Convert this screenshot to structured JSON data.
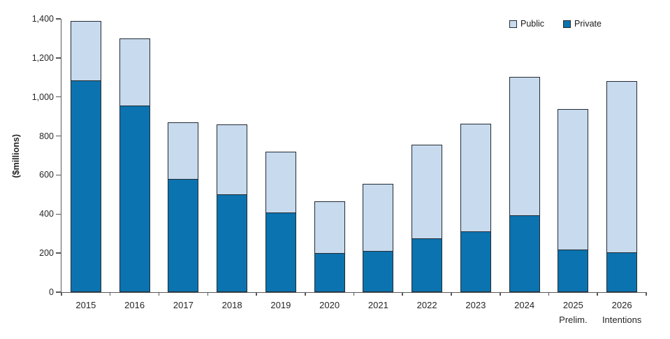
{
  "chart_data": {
    "type": "bar",
    "stacked": true,
    "title": "",
    "ylabel": "($millions)",
    "ylim": [
      0,
      1400
    ],
    "grid": false,
    "legend_position": "top-right",
    "categories": [
      "2015",
      "2016",
      "2017",
      "2018",
      "2019",
      "2020",
      "2021",
      "2022",
      "2023",
      "2024",
      "2025",
      "2026"
    ],
    "category_sublabels": [
      "",
      "",
      "",
      "",
      "",
      "",
      "",
      "",
      "",
      "",
      "Prelim.",
      "Intentions"
    ],
    "series": [
      {
        "name": "Private",
        "color": "#0b73af",
        "values": [
          1085,
          955,
          580,
          500,
          410,
          200,
          210,
          275,
          310,
          395,
          220,
          205
        ]
      },
      {
        "name": "Public",
        "color": "#c7daee",
        "values": [
          310,
          350,
          295,
          365,
          315,
          270,
          350,
          485,
          560,
          715,
          725,
          880
        ]
      }
    ],
    "ytick_values": [
      0,
      200,
      400,
      600,
      800,
      1000,
      1200,
      1400
    ],
    "ytick_labels": [
      "0",
      "200",
      "400",
      "600",
      "800",
      "1,000",
      "1,200",
      "1,400"
    ],
    "legend": [
      {
        "label": "Public",
        "color": "#c7daee"
      },
      {
        "label": "Private",
        "color": "#0b73af"
      }
    ]
  },
  "style": {
    "bar_border": "#242b33",
    "axis_color": "#595959",
    "text_color": "#262626"
  }
}
